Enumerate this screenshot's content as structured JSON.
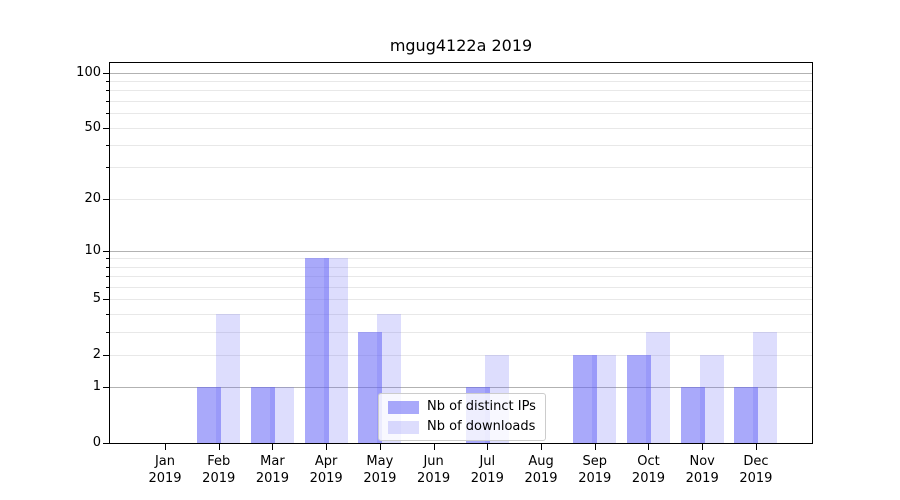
{
  "figure": {
    "background": "#ffffff"
  },
  "chart_data": {
    "type": "bar",
    "title": "mgug4122a 2019",
    "categories": [
      "Jan",
      "Feb",
      "Mar",
      "Apr",
      "May",
      "Jun",
      "Jul",
      "Aug",
      "Sep",
      "Oct",
      "Nov",
      "Dec"
    ],
    "x_tick_year": "2019",
    "series": [
      {
        "name": "Nb of distinct IPs",
        "color": "#6262f5",
        "alpha": 0.55,
        "values": [
          0,
          1,
          1,
          9,
          3,
          0,
          1,
          0,
          2,
          2,
          1,
          1
        ]
      },
      {
        "name": "Nb of downloads",
        "color": "#6262f5",
        "alpha": 0.22,
        "values": [
          0,
          4,
          1,
          9,
          4,
          0,
          2,
          0,
          2,
          3,
          2,
          3
        ]
      }
    ],
    "yscale": "log1p",
    "ylim": [
      0,
      113
    ],
    "y_tick_labels": [
      "0",
      "1",
      "2",
      "5",
      "10",
      "20",
      "50",
      "100"
    ],
    "y_tick_values": [
      0,
      1,
      2,
      5,
      10,
      20,
      50,
      100
    ],
    "y_major_gridlines": [
      1,
      10,
      100
    ],
    "y_minor_gridlines": [
      2,
      3,
      4,
      5,
      6,
      7,
      8,
      9,
      20,
      30,
      40,
      50,
      60,
      70,
      80,
      90
    ],
    "grid": {
      "major_color": "#b2b2b2",
      "minor_color": "#e8e8e8"
    },
    "spine_color": "#000000",
    "legend": {
      "position": "lower center"
    }
  }
}
